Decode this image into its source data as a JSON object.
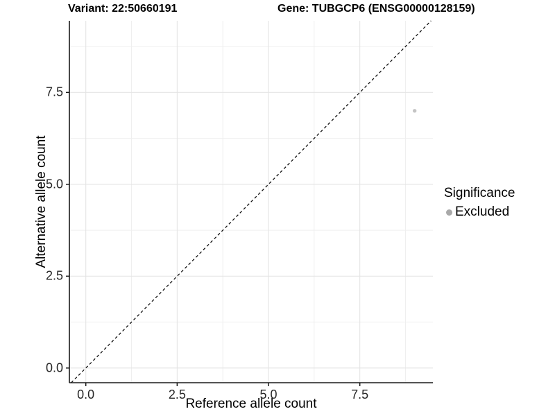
{
  "chart_data": {
    "type": "scatter",
    "title_left": "Variant: 22:50660191",
    "title_right": "Gene: TUBGCP6 (ENSG00000128159)",
    "xlabel": "Reference allele count",
    "ylabel": "Alternative allele count",
    "xlim": [
      -0.45,
      9.5
    ],
    "ylim": [
      -0.4,
      9.45
    ],
    "x_ticks": [
      {
        "value": 0.0,
        "label": "0.0"
      },
      {
        "value": 2.5,
        "label": "2.5"
      },
      {
        "value": 5.0,
        "label": "5.0"
      },
      {
        "value": 7.5,
        "label": "7.5"
      }
    ],
    "y_ticks": [
      {
        "value": 0.0,
        "label": "0.0"
      },
      {
        "value": 2.5,
        "label": "2.5"
      },
      {
        "value": 5.0,
        "label": "5.0"
      },
      {
        "value": 7.5,
        "label": "7.5"
      }
    ],
    "grid": true,
    "points": [
      {
        "x": 9,
        "y": 7,
        "series": "Excluded",
        "color": "#c4c4c4"
      }
    ],
    "reference_line": {
      "type": "identity",
      "style": "dashed",
      "color": "#111111"
    },
    "legend": {
      "position": "right",
      "title": "Significance",
      "entries": [
        {
          "label": "Excluded",
          "color": "#a9a9a9"
        }
      ]
    }
  },
  "colors": {
    "background": "#ffffff",
    "grid_major": "#e4e4e4",
    "grid_minor": "#efefef",
    "axis_line": "#1a1a1a",
    "tick_text": "#262626"
  }
}
